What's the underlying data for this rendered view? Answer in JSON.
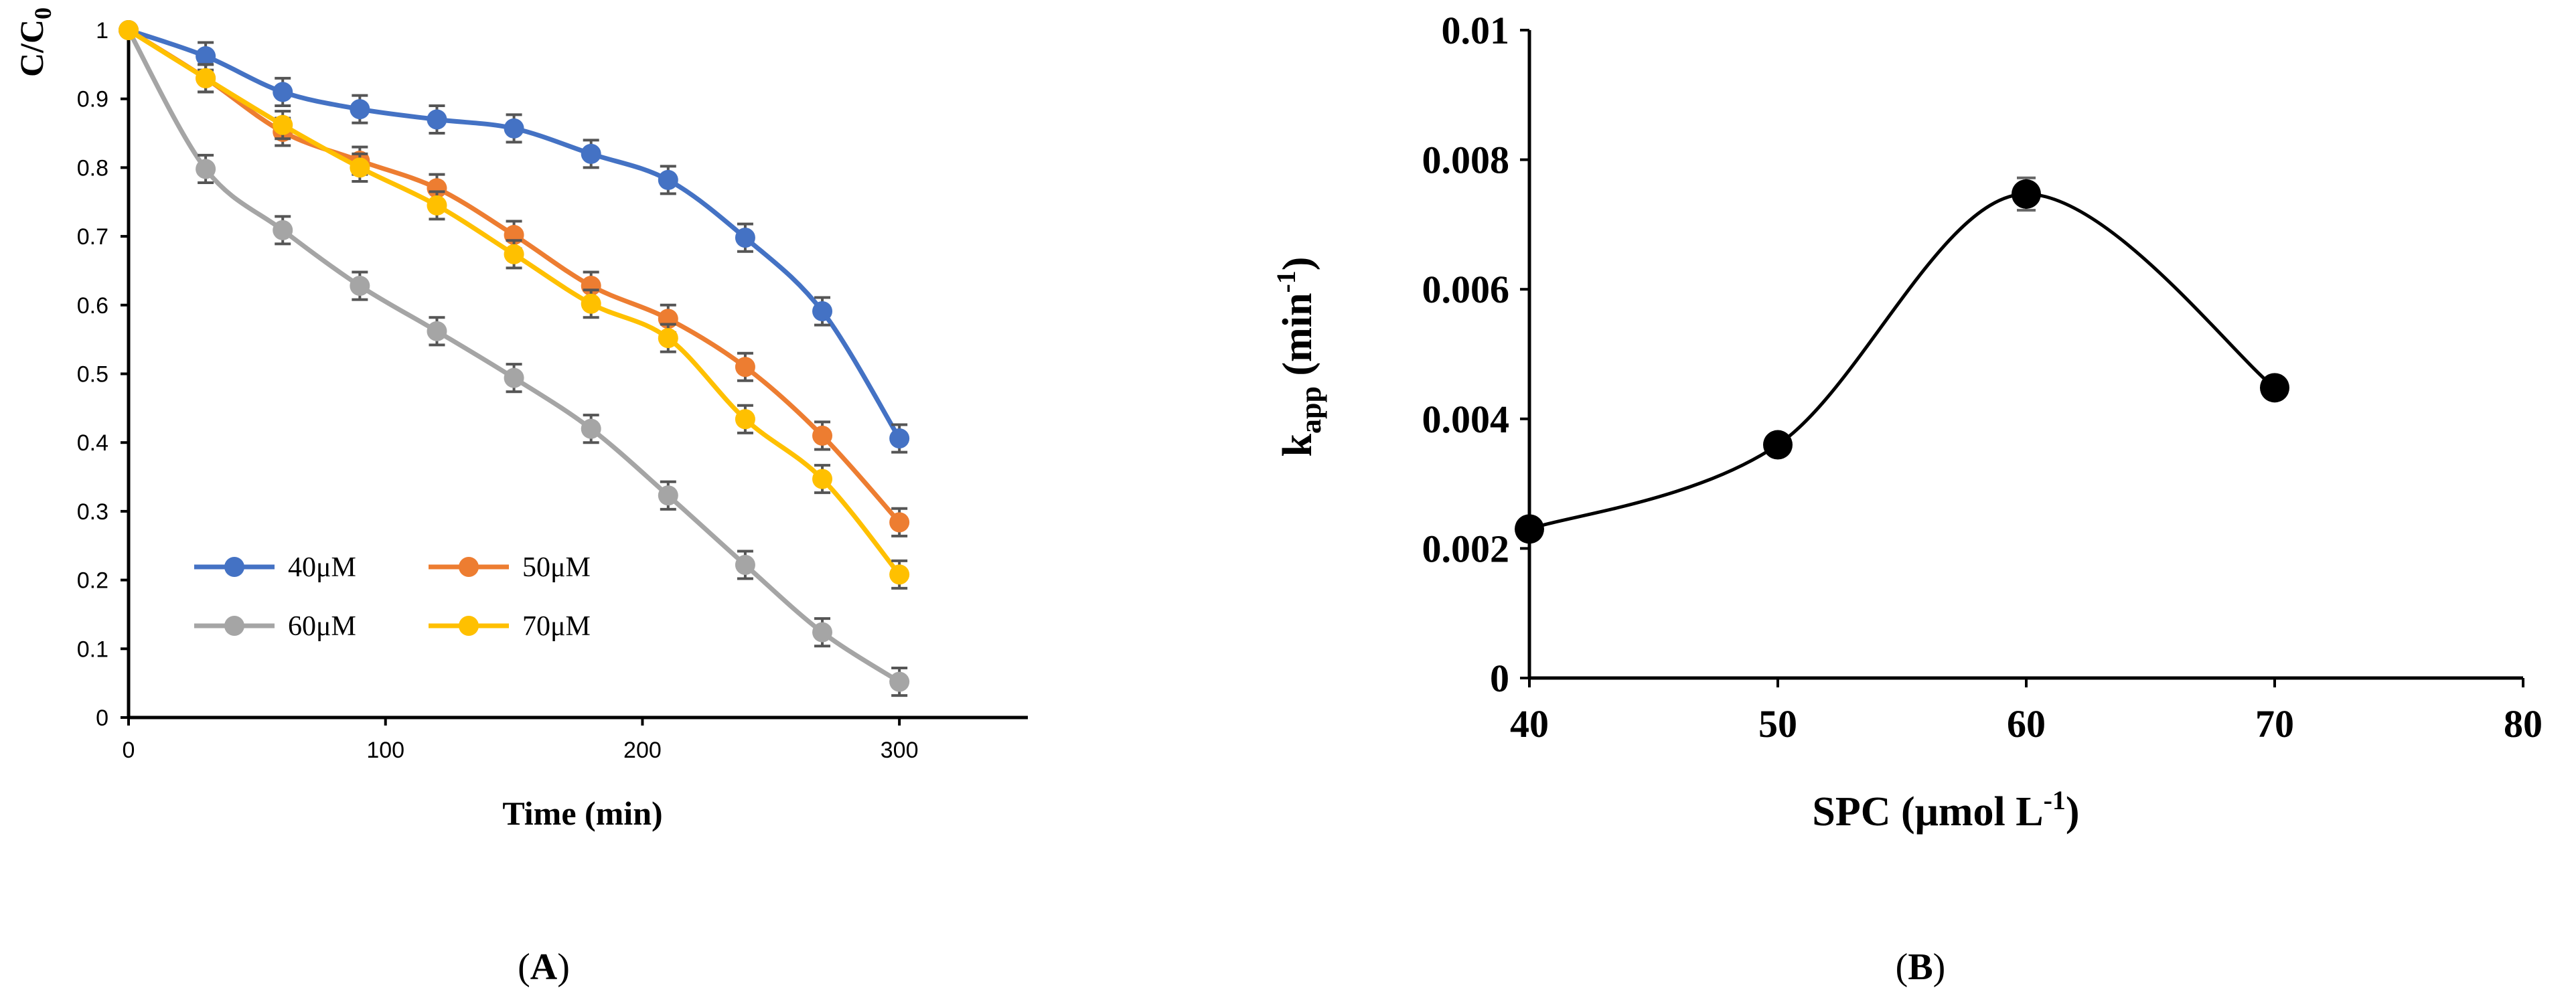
{
  "panelA": {
    "label": "A",
    "chart_data": {
      "type": "line",
      "ylabel": "C/C0",
      "ylabel_main": "C/C",
      "ylabel_sub": "0",
      "xlabel": "Time (min)",
      "xlim": [
        0,
        350
      ],
      "ylim": [
        0,
        1
      ],
      "xticks": [
        0,
        100,
        200,
        300
      ],
      "yticks": [
        "0",
        "0.1",
        "0.2",
        "0.3",
        "0.4",
        "0.5",
        "0.6",
        "0.7",
        "0.8",
        "0.9",
        "1"
      ],
      "x": [
        0,
        30,
        60,
        90,
        120,
        150,
        180,
        210,
        240,
        270,
        300
      ],
      "series": [
        {
          "name": "40μM",
          "color": "#4472C4",
          "values": [
            1,
            0.962,
            0.91,
            0.885,
            0.87,
            0.857,
            0.82,
            0.782,
            0.698,
            0.591,
            0.406
          ],
          "error": 0.02
        },
        {
          "name": "50μM",
          "color": "#ED7D31",
          "values": [
            1,
            0.93,
            0.852,
            0.81,
            0.77,
            0.702,
            0.628,
            0.58,
            0.51,
            0.41,
            0.284
          ],
          "error": 0.02
        },
        {
          "name": "60μM",
          "color": "#A5A5A5",
          "values": [
            1,
            0.798,
            0.709,
            0.628,
            0.562,
            0.494,
            0.42,
            0.323,
            0.222,
            0.124,
            0.052
          ],
          "error": 0.02
        },
        {
          "name": "70μM",
          "color": "#FFC000",
          "values": [
            1,
            0.93,
            0.862,
            0.8,
            0.745,
            0.674,
            0.602,
            0.552,
            0.434,
            0.347,
            0.208
          ],
          "error": 0.02
        }
      ]
    }
  },
  "panelB": {
    "label": "B",
    "chart_data": {
      "type": "scatter",
      "ylabel_main": "k",
      "ylabel_sub": "app",
      "ylabel_unit": " (min",
      "ylabel_sup": "-1",
      "ylabel_close": ")",
      "xlabel_main": "SPC (μmol L",
      "xlabel_sup": "-1",
      "xlabel_close": ")",
      "xlim": [
        40,
        80
      ],
      "ylim": [
        0,
        0.01
      ],
      "xticks": [
        40,
        50,
        60,
        70,
        80
      ],
      "yticks": [
        "0",
        "0.002",
        "0.004",
        "0.006",
        "0.008",
        "0.01"
      ],
      "x": [
        40,
        50,
        60,
        70
      ],
      "values": [
        0.0023,
        0.0036,
        0.00747,
        0.00448
      ],
      "error": [
        0,
        0,
        0.00025,
        0
      ],
      "color": "#000000",
      "smooth_line": true
    }
  }
}
